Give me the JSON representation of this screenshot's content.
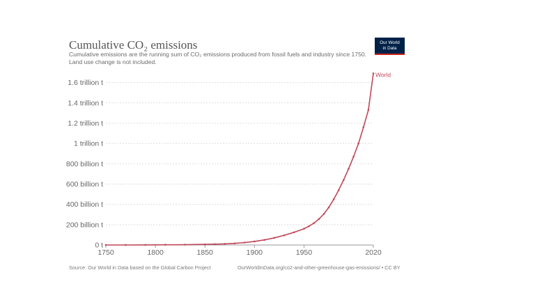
{
  "header": {
    "title": "Cumulative CO₂ emissions",
    "subtitle": "Cumulative emissions are the running sum of CO₂ emissions produced from fossil fuels and industry since 1750. Land use change is not included.",
    "logo_line1": "Our World",
    "logo_line2": "in Data"
  },
  "footer": {
    "source": "Source: Our World in Data based on the Global Carbon Project",
    "license": "OurWorldInData.org/co2-and-other-greenhouse-gas-emissions/ • CC BY"
  },
  "colors": {
    "series": "#c0475a",
    "grid": "#dddddd",
    "axis": "#999999",
    "tick_text": "#666666",
    "logo_bg": "#002147",
    "logo_accent": "#ce261e"
  },
  "chart_data": {
    "type": "line",
    "title": "Cumulative CO₂ emissions",
    "xlabel": "",
    "ylabel": "",
    "xlim": [
      1750,
      2020
    ],
    "ylim": [
      0,
      1700
    ],
    "y_unit": "billion t",
    "grid": "horizontal dotted",
    "legend": "inline label at end of line",
    "x_ticks": [
      {
        "value": 1750,
        "label": "1750"
      },
      {
        "value": 1800,
        "label": "1800"
      },
      {
        "value": 1850,
        "label": "1850"
      },
      {
        "value": 1900,
        "label": "1900"
      },
      {
        "value": 1950,
        "label": "1950"
      },
      {
        "value": 2020,
        "label": "2020"
      }
    ],
    "y_ticks": [
      {
        "value": 0,
        "label": "0 t"
      },
      {
        "value": 200,
        "label": "200 billion t"
      },
      {
        "value": 400,
        "label": "400 billion t"
      },
      {
        "value": 600,
        "label": "600 billion t"
      },
      {
        "value": 800,
        "label": "800 billion t"
      },
      {
        "value": 1000,
        "label": "1 trillion t"
      },
      {
        "value": 1200,
        "label": "1.2 trillion t"
      },
      {
        "value": 1400,
        "label": "1.4 trillion t"
      },
      {
        "value": 1600,
        "label": "1.6 trillion t"
      }
    ],
    "series": [
      {
        "name": "World",
        "x": [
          1750,
          1770,
          1790,
          1810,
          1830,
          1850,
          1860,
          1870,
          1880,
          1890,
          1900,
          1910,
          1920,
          1930,
          1940,
          1950,
          1955,
          1960,
          1965,
          1970,
          1975,
          1980,
          1985,
          1990,
          1995,
          2000,
          2005,
          2010,
          2015,
          2020
        ],
        "values": [
          0,
          0.3,
          0.8,
          1.8,
          3,
          6,
          8,
          11,
          16,
          24,
          35,
          50,
          70,
          95,
          125,
          160,
          185,
          215,
          255,
          305,
          370,
          450,
          540,
          640,
          750,
          870,
          1000,
          1160,
          1330,
          1690
        ]
      }
    ]
  }
}
